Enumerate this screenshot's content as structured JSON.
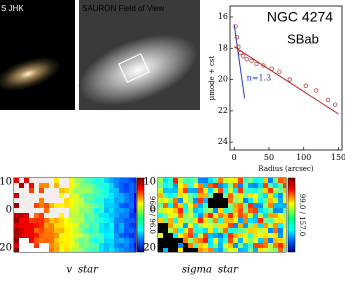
{
  "images": [
    {
      "label": "S JHK"
    },
    {
      "label": "SAURON Field of View"
    }
  ],
  "chart_data": {
    "type": "scatter",
    "title": "NGC 4274",
    "subtitle": "SBab",
    "y_label": "μmode + cst",
    "x_label": "Radius (arcsec)",
    "annotation": "n=1.3",
    "xlim": [
      -6,
      155
    ],
    "ylim": [
      15.3,
      24.5
    ],
    "y_inverted": true,
    "xticks": [
      0,
      50,
      100,
      150
    ],
    "yticks": [
      16,
      18,
      20,
      22,
      24
    ],
    "points": {
      "color": "#b03030",
      "x": [
        2,
        4,
        6,
        9,
        13,
        18,
        25,
        32,
        42,
        54,
        65,
        80,
        103,
        118,
        135,
        145
      ],
      "values": [
        16.6,
        17.3,
        17.9,
        18.3,
        18.5,
        18.7,
        18.8,
        19.0,
        19.1,
        19.3,
        19.5,
        20.0,
        20.4,
        20.7,
        21.3,
        21.6
      ]
    },
    "fits": [
      {
        "color": "#c02020",
        "x": [
          0,
          150
        ],
        "values": [
          17.9,
          22.2
        ]
      },
      {
        "color": "#2040c0",
        "x": [
          0,
          15
        ],
        "values": [
          16.5,
          21.2
        ]
      }
    ]
  },
  "maps": [
    {
      "ticks": [
        "10",
        "0",
        "20"
      ],
      "range_label": "96.0 / 96.0",
      "caption": "v",
      "caption_sub": "star"
    },
    {
      "ticks": [
        "10",
        "0",
        "20"
      ],
      "range_label": "99.0 / 157.0",
      "caption": "sigma",
      "caption_sub": "star"
    }
  ]
}
